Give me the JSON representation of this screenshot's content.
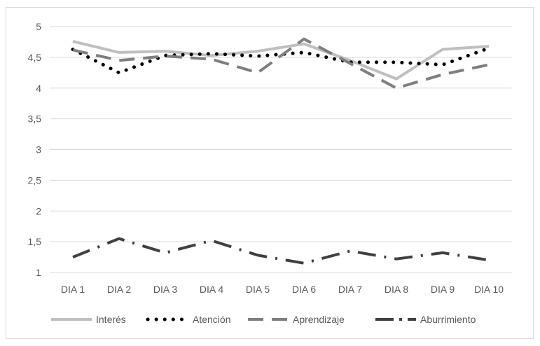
{
  "chart_data": {
    "type": "line",
    "title": "",
    "xlabel": "",
    "ylabel": "",
    "ylim": [
      1,
      5
    ],
    "yticks": [
      "1",
      "1,5",
      "2",
      "2,5",
      "3",
      "3,5",
      "4",
      "4,5",
      "5"
    ],
    "categories": [
      "DIA 1",
      "DIA 2",
      "DIA 3",
      "DIA 4",
      "DIA 5",
      "DIA 6",
      "DIA 7",
      "DIA 8",
      "DIA 9",
      "DIA 10"
    ],
    "grid": true,
    "legend_position": "bottom",
    "series": [
      {
        "name": "Interés",
        "color": "#bfbfbf",
        "style": "solid",
        "values": [
          4.76,
          4.58,
          4.6,
          4.53,
          4.6,
          4.72,
          4.45,
          4.15,
          4.63,
          4.68
        ]
      },
      {
        "name": "Atención",
        "color": "#000000",
        "style": "dotted",
        "values": [
          4.63,
          4.25,
          4.53,
          4.56,
          4.52,
          4.58,
          4.42,
          4.42,
          4.38,
          4.65
        ]
      },
      {
        "name": "Aprendizaje",
        "color": "#7f7f7f",
        "style": "dashed",
        "values": [
          4.62,
          4.45,
          4.52,
          4.47,
          4.25,
          4.8,
          4.4,
          4.0,
          4.22,
          4.38
        ]
      },
      {
        "name": "Aburrimiento",
        "color": "#404040",
        "style": "dashdot",
        "values": [
          1.25,
          1.55,
          1.32,
          1.52,
          1.28,
          1.15,
          1.35,
          1.22,
          1.32,
          1.2
        ]
      }
    ]
  }
}
